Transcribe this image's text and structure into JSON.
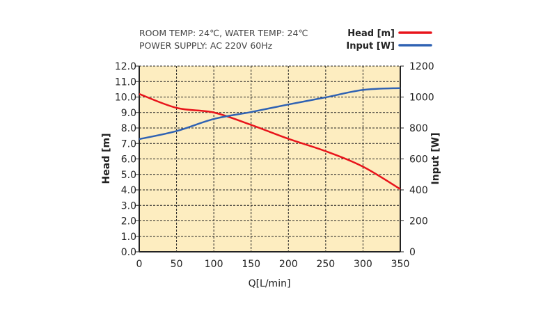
{
  "chart_data": {
    "type": "line",
    "notes": [
      "ROOM TEMP: 24℃, WATER TEMP: 24℃",
      "POWER SUPPLY: AC 220V 60Hz"
    ],
    "xlabel": "Q[L/min]",
    "ylabel_left": "Head [m]",
    "ylabel_right": "Input [W]",
    "xlim": [
      0,
      350
    ],
    "ylim_left": [
      0,
      12
    ],
    "ylim_right": [
      0,
      1200
    ],
    "x_ticks": [
      "0",
      "50",
      "100",
      "150",
      "200",
      "250",
      "300",
      "350"
    ],
    "y_left_ticks": [
      "0.0",
      "1.0",
      "2.0",
      "3.0",
      "4.0",
      "5.0",
      "6.0",
      "7.0",
      "8.0",
      "9.0",
      "10.0",
      "11.0",
      "12.0"
    ],
    "y_right_ticks": [
      "0",
      "200",
      "400",
      "600",
      "800",
      "1000",
      "1200"
    ],
    "grid": true,
    "legend_position": "top-right",
    "x": [
      0,
      50,
      100,
      150,
      200,
      250,
      300,
      350
    ],
    "series": [
      {
        "name": "Head [m]",
        "axis": "left",
        "color": "#e8141b",
        "values": [
          10.2,
          9.3,
          9.0,
          8.2,
          7.3,
          6.5,
          5.5,
          4.05
        ]
      },
      {
        "name": "Input [W]",
        "axis": "right",
        "color": "#2f62b3",
        "values": [
          728,
          780,
          858,
          903,
          952,
          998,
          1046,
          1058
        ]
      }
    ],
    "plot_background": "#fdedc0"
  }
}
